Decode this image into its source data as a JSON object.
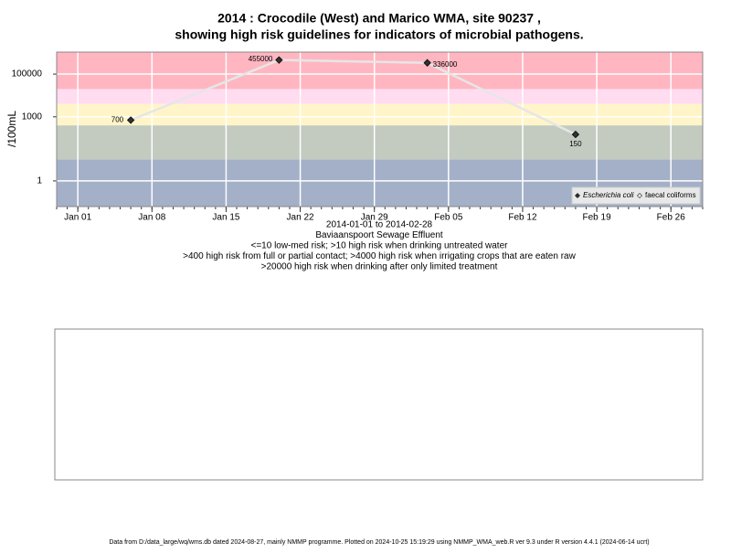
{
  "chart_data": {
    "type": "line",
    "title": "2014 : Crocodile (West) and Marico WMA, site 90237 ,",
    "title_line2": "showing high risk guidelines for indicators of microbial pathogens.",
    "y_label": "/100mL",
    "subtitle_lines": [
      "2014-01-01 to 2014-02-28",
      "Baviaanspoort Sewage Effluent",
      "<=10 low-med risk; >10 high risk when drinking untreated water",
      ">400 high risk from full or partial contact; >4000 high risk when irrigating crops that are eaten raw",
      ">20000 high risk when drinking after only limited treatment"
    ],
    "footer": "Data from D:/data_large/wq/wms.db dated 2024-08-27, mainly NMMP programme. Plotted on 2024-10-25 15:19:29 using NMMP_WMA_web.R ver 9.3 under R version 4.4.1 (2024-06-14 ucrt)",
    "x": [
      "2014-01-06",
      "2014-01-20",
      "2014-02-03",
      "2014-02-17"
    ],
    "series": [
      {
        "name": "Escherichia coli",
        "color": "#333333",
        "line_color": "#e6e6e6",
        "values": [
          700,
          455000,
          336000,
          150
        ]
      },
      {
        "name": "faecal coliforms",
        "color": "#ffffff",
        "line_color": "#e6e6e6",
        "values": [
          null,
          null,
          null,
          null
        ]
      }
    ],
    "xlim": [
      "2013-12-30",
      "2014-03-01"
    ],
    "xticks": [
      {
        "value": "2014-01-01",
        "label": "Jan 01"
      },
      {
        "value": "2014-01-08",
        "label": "Jan 08"
      },
      {
        "value": "2014-01-15",
        "label": "Jan 15"
      },
      {
        "value": "2014-01-22",
        "label": "Jan 22"
      },
      {
        "value": "2014-01-29",
        "label": "Jan 29"
      },
      {
        "value": "2014-02-05",
        "label": "Feb 05"
      },
      {
        "value": "2014-02-12",
        "label": "Feb 12"
      },
      {
        "value": "2014-02-19",
        "label": "Feb 19"
      },
      {
        "value": "2014-02-26",
        "label": "Feb 26"
      }
    ],
    "ylim": [
      0.063,
      1070000
    ],
    "yticks": [
      1,
      1000,
      100000
    ],
    "log_y": true,
    "grid": true,
    "legend_position": "bottom-right",
    "band_thresholds": [
      10,
      400,
      4000,
      20000
    ],
    "band_colors": [
      "#a3b0c8",
      "#c3cbc1",
      "#fff5c8",
      "#ffdcf0",
      "#ffb6c1"
    ]
  }
}
